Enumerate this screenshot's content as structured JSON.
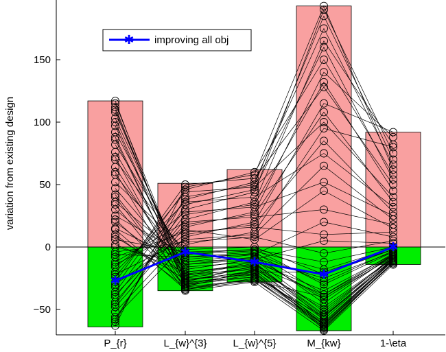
{
  "chart_data": {
    "type": "parallel-coordinates",
    "ylabel": "variation from existing design",
    "xlabel": "",
    "categories": [
      "P_{r}",
      "L_{w}^{3}",
      "L_{w}^{5}",
      "M_{kw}",
      "1-\\eta"
    ],
    "ylim": [
      -70,
      190
    ],
    "yticks": [
      -50,
      0,
      50,
      100,
      150
    ],
    "ytick_labels": [
      "−50",
      "0",
      "50",
      "100",
      "150"
    ],
    "range_bars": [
      {
        "category": "P_{r}",
        "max": 117,
        "min": -64
      },
      {
        "category": "L_{w}^{3}",
        "max": 51,
        "min": -35
      },
      {
        "category": "L_{w}^{5}",
        "max": 62,
        "min": -28
      },
      {
        "category": "M_{kw}",
        "max": 193,
        "min": -67
      },
      {
        "category": "1-\\eta",
        "max": 92,
        "min": -14
      }
    ],
    "highlight_series": {
      "name": "improving all obj",
      "values": [
        -27,
        -4,
        -12,
        -22,
        0
      ]
    },
    "solution_lines": [
      [
        117,
        -32,
        -18,
        -66,
        -12
      ],
      [
        112,
        -28,
        -15,
        -63,
        -10
      ],
      [
        108,
        -22,
        -12,
        -58,
        -9
      ],
      [
        103,
        -18,
        -10,
        -52,
        -8
      ],
      [
        97,
        -26,
        -22,
        -60,
        -11
      ],
      [
        92,
        -12,
        -6,
        -45,
        -6
      ],
      [
        88,
        -30,
        -20,
        -64,
        -12
      ],
      [
        82,
        -8,
        -4,
        -38,
        -5
      ],
      [
        76,
        -20,
        -14,
        -55,
        -10
      ],
      [
        70,
        -5,
        -2,
        -30,
        -4
      ],
      [
        64,
        -24,
        -16,
        -50,
        -9
      ],
      [
        58,
        -14,
        -8,
        -42,
        -7
      ],
      [
        52,
        -2,
        0,
        -22,
        -2
      ],
      [
        47,
        -18,
        -10,
        -40,
        -8
      ],
      [
        42,
        -28,
        -24,
        -61,
        -11
      ],
      [
        36,
        -10,
        -5,
        -28,
        -3
      ],
      [
        30,
        -16,
        -12,
        -35,
        -6
      ],
      [
        25,
        -6,
        -3,
        -18,
        -1
      ],
      [
        20,
        -22,
        -18,
        -48,
        -9
      ],
      [
        15,
        -12,
        -9,
        -25,
        -4
      ],
      [
        10,
        -32,
        -26,
        -62,
        -13
      ],
      [
        6,
        -4,
        -2,
        -12,
        0
      ],
      [
        2,
        -20,
        -15,
        -38,
        -7
      ],
      [
        -4,
        4,
        8,
        -5,
        5
      ],
      [
        -8,
        12,
        16,
        10,
        12
      ],
      [
        -12,
        20,
        24,
        30,
        18
      ],
      [
        -16,
        28,
        32,
        52,
        25
      ],
      [
        -20,
        36,
        40,
        75,
        32
      ],
      [
        -24,
        44,
        48,
        100,
        40
      ],
      [
        -28,
        50,
        55,
        128,
        50
      ],
      [
        -32,
        46,
        60,
        150,
        58
      ],
      [
        -36,
        38,
        52,
        175,
        66
      ],
      [
        -40,
        30,
        44,
        190,
        75
      ],
      [
        -44,
        22,
        36,
        165,
        82
      ],
      [
        -48,
        16,
        28,
        140,
        88
      ],
      [
        -52,
        8,
        20,
        115,
        92
      ],
      [
        -56,
        2,
        12,
        95,
        80
      ],
      [
        -60,
        40,
        50,
        185,
        70
      ],
      [
        -63,
        48,
        58,
        193,
        62
      ],
      [
        -58,
        34,
        46,
        160,
        54
      ],
      [
        -46,
        26,
        34,
        132,
        45
      ],
      [
        -38,
        18,
        26,
        108,
        36
      ],
      [
        -30,
        10,
        18,
        85,
        28
      ],
      [
        -22,
        6,
        10,
        65,
        22
      ],
      [
        -14,
        14,
        6,
        45,
        15
      ],
      [
        -6,
        -8,
        -6,
        20,
        8
      ],
      [
        0,
        -14,
        -10,
        5,
        3
      ],
      [
        8,
        -26,
        -20,
        -20,
        -2
      ],
      [
        14,
        -34,
        -27,
        -40,
        -6
      ],
      [
        22,
        -30,
        -24,
        -56,
        -10
      ],
      [
        34,
        -35,
        -28,
        -67,
        -14
      ],
      [
        40,
        -33,
        -26,
        -65,
        -12
      ],
      [
        60,
        -34,
        -25,
        -64,
        -13
      ],
      [
        72,
        -31,
        -22,
        -62,
        -11
      ],
      [
        86,
        -29,
        -21,
        -60,
        -10
      ],
      [
        100,
        -27,
        -19,
        -58,
        -9
      ],
      [
        110,
        -25,
        -17,
        -56,
        -8
      ],
      [
        115,
        -23,
        -13,
        -54,
        -7
      ]
    ],
    "colors": {
      "positive_bar": "#f9a0a0",
      "negative_bar": "#00ee00",
      "solution_line": "#000000",
      "highlight": "#0000ff"
    },
    "legend": {
      "position": "top-left",
      "label": "improving all obj"
    },
    "grid": false
  }
}
